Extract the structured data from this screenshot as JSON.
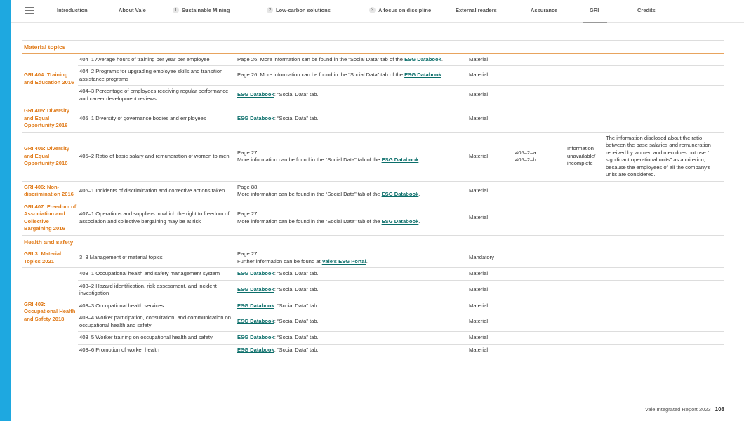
{
  "nav": [
    {
      "label": "Introduction"
    },
    {
      "label": "About Vale"
    },
    {
      "num": "1",
      "label": "Sustainable Mining"
    },
    {
      "num": "2",
      "label": "Low-carbon solutions"
    },
    {
      "num": "3",
      "label": "A focus on discipline"
    },
    {
      "label": "External readers"
    },
    {
      "label": "Assurance"
    },
    {
      "label": "GRI",
      "active": true
    },
    {
      "label": "Credits"
    }
  ],
  "sections": [
    {
      "title": "Material topics",
      "groups": [
        {
          "standard": "GRI 404: Training and Education 2016",
          "rows": [
            {
              "disclosure": "404–1 Average hours of training per year per employee",
              "location": [
                [
                  {
                    "text": "Page 26. More information can be found in the “Social Data” tab of the "
                  },
                  {
                    "text": "ESG Databook",
                    "link": true
                  },
                  {
                    "text": "."
                  }
                ]
              ],
              "material": "Material"
            },
            {
              "disclosure": "404–2 Programs for upgrading employee skills and transition assistance programs",
              "location": [
                [
                  {
                    "text": "Page 26. More information can be found in the “Social Data” tab of the "
                  },
                  {
                    "text": "ESG Databook",
                    "link": true
                  },
                  {
                    "text": "."
                  }
                ]
              ],
              "material": "Material"
            },
            {
              "disclosure": "404–3 Percentage of employees receiving regular performance and career development reviews",
              "location": [
                [
                  {
                    "text": "ESG Databook",
                    "link": true
                  },
                  {
                    "text": ": “Social Data” tab."
                  }
                ]
              ],
              "material": "Material"
            }
          ]
        },
        {
          "standard": "GRI 405: Diversity and Equal Opportunity 2016",
          "rows": [
            {
              "disclosure": "405–1 Diversity of governance bodies and employees",
              "location": [
                [
                  {
                    "text": "ESG Databook",
                    "link": true
                  },
                  {
                    "text": ": “Social Data” tab."
                  }
                ]
              ],
              "material": "Material"
            }
          ]
        },
        {
          "standard": "GRI 405: Diversity and Equal Opportunity 2016",
          "rows": [
            {
              "disclosure": "405–2 Ratio of basic salary and remuneration of women to men",
              "location": [
                [
                  {
                    "text": "Page 27."
                  }
                ],
                [
                  {
                    "text": "More information can be found in the “Social Data” tab of the "
                  },
                  {
                    "text": "ESG Databook",
                    "link": true
                  },
                  {
                    "text": "."
                  }
                ]
              ],
              "material": "Material",
              "omission": [
                "405–2–a",
                "405–2–b"
              ],
              "reason": "Information unavailable/ incomplete",
              "explanation": "The information disclosed about the ratio between the base salaries and remuneration received by women and men does not use “ significant operational units” as a criterion, because the employees of all the company’s units are considered."
            }
          ]
        },
        {
          "standard": "GRI 406: Non-discrimination 2016",
          "rows": [
            {
              "disclosure": "406–1 Incidents of discrimination and corrective actions taken",
              "location": [
                [
                  {
                    "text": "Page 88."
                  }
                ],
                [
                  {
                    "text": "More information can be found in the “Social Data” tab of the "
                  },
                  {
                    "text": "ESG Databook",
                    "link": true
                  },
                  {
                    "text": "."
                  }
                ]
              ],
              "material": "Material"
            }
          ]
        },
        {
          "standard": "GRI 407: Freedom of Association and Collective Bargaining 2016",
          "rows": [
            {
              "disclosure": "407–1 Operations and suppliers in which the right to freedom of association and collective bargaining may be at risk",
              "location": [
                [
                  {
                    "text": "Page 27."
                  }
                ],
                [
                  {
                    "text": "More information can be found in the “Social Data” tab of the "
                  },
                  {
                    "text": "ESG Databook",
                    "link": true
                  },
                  {
                    "text": "."
                  }
                ]
              ],
              "material": "Material"
            }
          ]
        }
      ]
    },
    {
      "title": "Health and safety",
      "groups": [
        {
          "standard": "GRI 3: Material Topics 2021",
          "rows": [
            {
              "disclosure": "3–3 Management of material topics",
              "location": [
                [
                  {
                    "text": "Page 27."
                  }
                ],
                [
                  {
                    "text": "Further information can be found at "
                  },
                  {
                    "text": "Vale’s ESG Portal",
                    "link": true
                  },
                  {
                    "text": "."
                  }
                ]
              ],
              "material": "Mandatory"
            }
          ]
        },
        {
          "standard": "GRI 403: Occupational Health and Safety 2018",
          "rows": [
            {
              "disclosure": "403–1 Occupational health and safety management system",
              "location": [
                [
                  {
                    "text": "ESG Databook",
                    "link": true
                  },
                  {
                    "text": ": “Social Data” tab."
                  }
                ]
              ],
              "material": "Material"
            },
            {
              "disclosure": "403–2 Hazard identification, risk assessment, and incident investigation",
              "location": [
                [
                  {
                    "text": "ESG Databook",
                    "link": true
                  },
                  {
                    "text": ": “Social Data” tab."
                  }
                ]
              ],
              "material": "Material"
            },
            {
              "disclosure": "403–3 Occupational health services",
              "location": [
                [
                  {
                    "text": "ESG Databook",
                    "link": true
                  },
                  {
                    "text": ": “Social Data” tab."
                  }
                ]
              ],
              "material": "Material"
            },
            {
              "disclosure": "403–4 Worker participation, consultation, and communication on occupational health and safety",
              "location": [
                [
                  {
                    "text": "ESG Databook",
                    "link": true
                  },
                  {
                    "text": ": “Social Data” tab."
                  }
                ]
              ],
              "material": "Material"
            },
            {
              "disclosure": "403–5 Worker training on occupational health and safety",
              "location": [
                [
                  {
                    "text": "ESG Databook",
                    "link": true
                  },
                  {
                    "text": ": “Social Data” tab."
                  }
                ]
              ],
              "material": "Material"
            },
            {
              "disclosure": "403–6 Promotion of worker health",
              "location": [
                [
                  {
                    "text": "ESG Databook",
                    "link": true
                  },
                  {
                    "text": ": “Social Data” tab."
                  }
                ]
              ],
              "material": "Material"
            }
          ]
        }
      ]
    }
  ],
  "footer": {
    "report": "Vale Integrated Report 2023",
    "page": "108"
  }
}
